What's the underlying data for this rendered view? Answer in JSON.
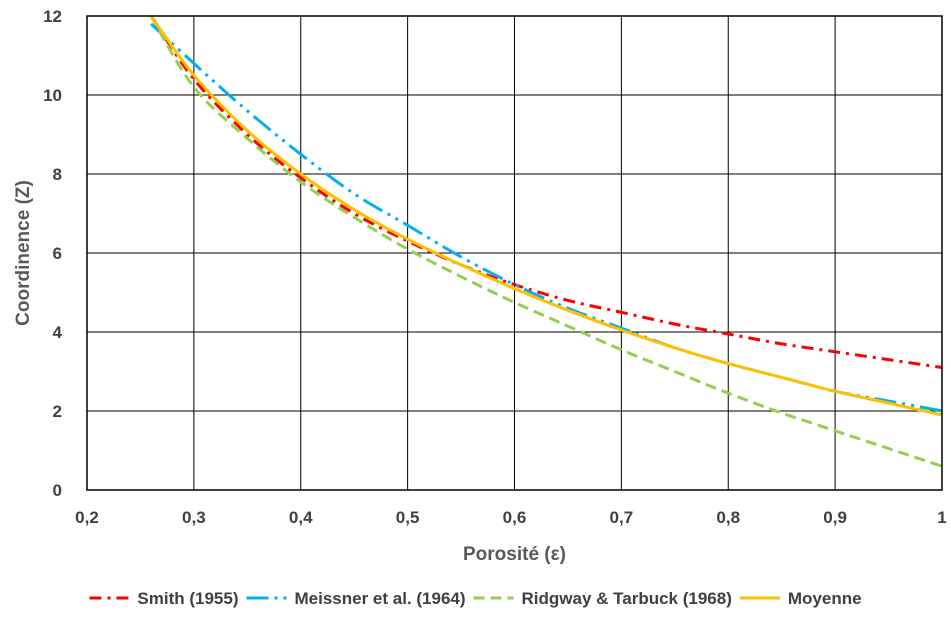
{
  "chart_data": {
    "type": "line",
    "title": "",
    "xlabel": "Porosité (ε)",
    "ylabel": "Coordinence (Z)",
    "xlim": [
      0.2,
      1.0
    ],
    "ylim": [
      0,
      12
    ],
    "x_ticks": [
      "0,2",
      "0,3",
      "0,4",
      "0,5",
      "0,6",
      "0,7",
      "0,8",
      "0,9",
      "1"
    ],
    "y_ticks": [
      "0",
      "2",
      "4",
      "6",
      "8",
      "10",
      "12"
    ],
    "grid": true,
    "legend_position": "bottom",
    "x": [
      0.26,
      0.3,
      0.35,
      0.4,
      0.45,
      0.5,
      0.55,
      0.6,
      0.65,
      0.7,
      0.75,
      0.8,
      0.85,
      0.9,
      0.95,
      1.0
    ],
    "series": [
      {
        "name": "Smith (1955)",
        "color": "#ff0000",
        "dash": "dash-dot",
        "values": [
          12.0,
          10.4,
          9.0,
          7.9,
          7.0,
          6.3,
          5.7,
          5.2,
          4.8,
          4.5,
          4.2,
          3.95,
          3.7,
          3.5,
          3.3,
          3.1
        ]
      },
      {
        "name": "Meissner et al. (1964)",
        "color": "#00b0f0",
        "dash": "long-dash-dot-dot",
        "values": [
          11.8,
          10.8,
          9.6,
          8.5,
          7.5,
          6.7,
          5.9,
          5.2,
          4.6,
          4.1,
          3.6,
          3.2,
          2.85,
          2.5,
          2.25,
          2.0
        ]
      },
      {
        "name": "Ridgway & Tarbuck (1968)",
        "color": "#92d050",
        "dash": "dash",
        "values": [
          12.0,
          10.2,
          8.9,
          7.8,
          6.9,
          6.1,
          5.4,
          4.75,
          4.15,
          3.55,
          3.0,
          2.45,
          1.95,
          1.5,
          1.05,
          0.6
        ]
      },
      {
        "name": "Moyenne",
        "color": "#ffc000",
        "dash": "solid",
        "values": [
          12.0,
          10.5,
          9.1,
          8.0,
          7.1,
          6.35,
          5.7,
          5.1,
          4.55,
          4.05,
          3.6,
          3.2,
          2.85,
          2.5,
          2.2,
          1.9
        ]
      }
    ]
  }
}
